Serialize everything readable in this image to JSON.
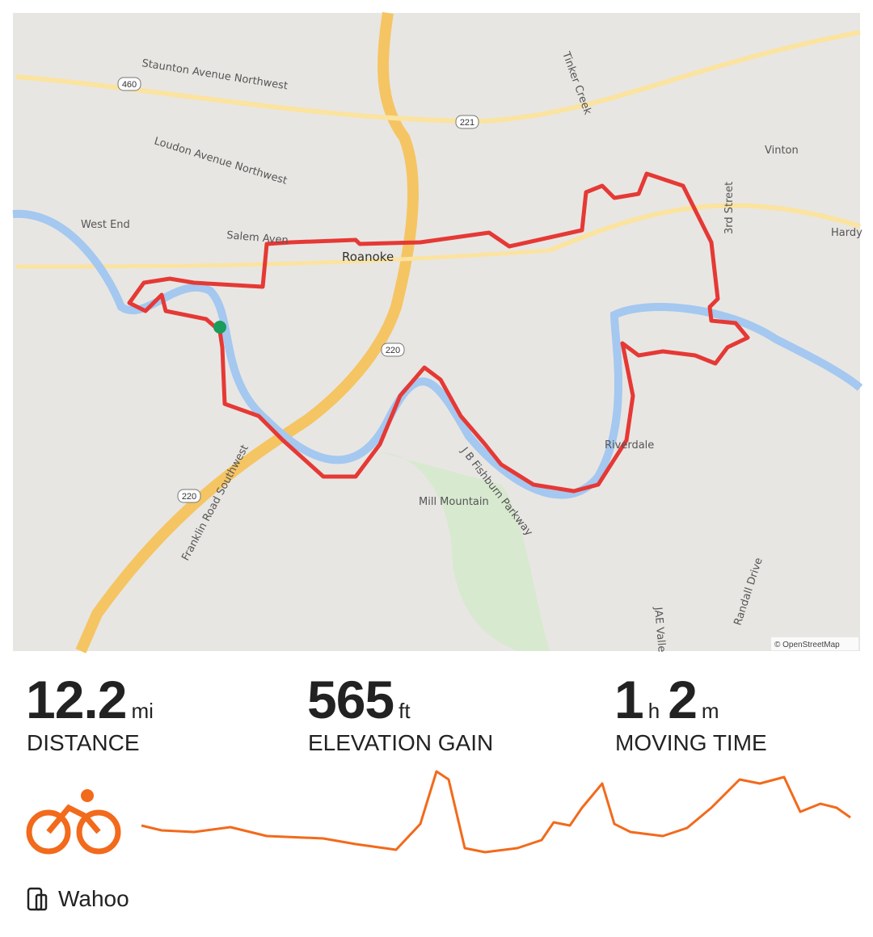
{
  "map": {
    "labels": [
      "Staunton Avenue Northwest",
      "Loudon Avenue Northwest",
      "West End",
      "Salem Aven",
      "Roanoke",
      "Vinton",
      "3rd Street",
      "Hardy",
      "Tinker Creek",
      "Riverdale",
      "Mill Mountain",
      "J B Fishburn Parkway",
      "Franklin Road Southwest",
      "JAE Valle",
      "Randall Drive"
    ],
    "shields": [
      "460",
      "221",
      "220",
      "220"
    ],
    "attribution": "© OpenStreetMap"
  },
  "stats": [
    {
      "value": "12.2",
      "unit": "mi",
      "label": "DISTANCE"
    },
    {
      "value": "565",
      "unit": "ft",
      "label": "ELEVATION GAIN"
    },
    {
      "value": "1",
      "unit": "h",
      "value2": "2",
      "unit2": "m",
      "label": "MOVING TIME"
    }
  ],
  "device": "Wahoo"
}
